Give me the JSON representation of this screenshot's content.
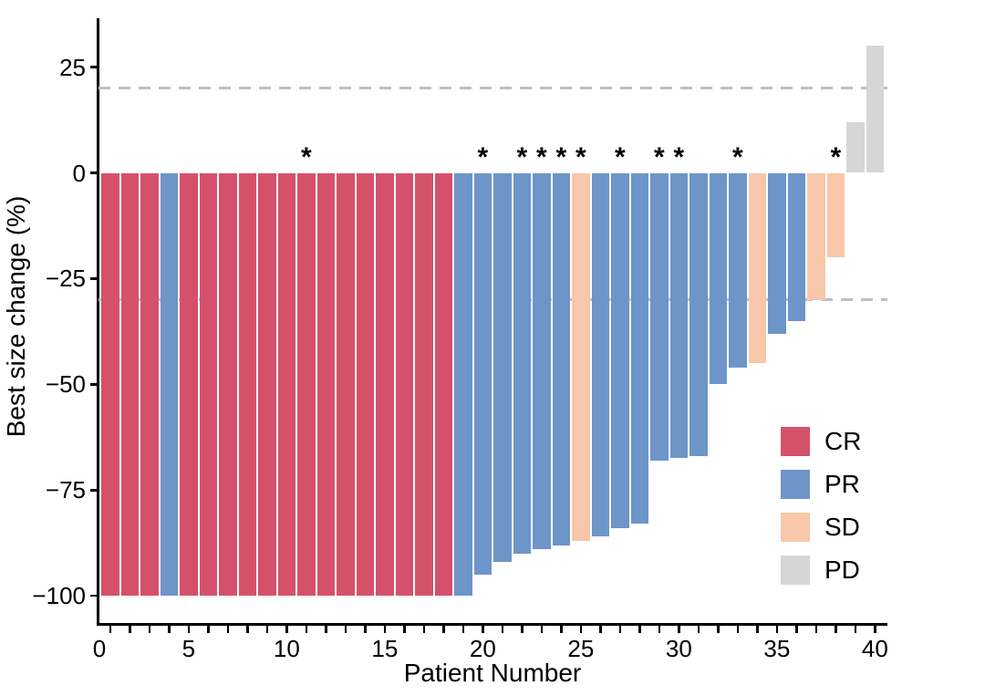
{
  "chart_data": {
    "type": "bar",
    "chart_kind": "waterfall",
    "title": "",
    "xlabel": "Patient Number",
    "ylabel": "Best size change (%)",
    "x_tick_values": [
      0,
      5,
      10,
      15,
      20,
      25,
      30,
      35,
      40
    ],
    "x_tick_labels": [
      "0",
      "5",
      "10",
      "15",
      "20",
      "25",
      "30",
      "35",
      "40"
    ],
    "x_minor_ticks": "every integer 1 to 40",
    "y_tick_values": [
      25,
      0,
      -25,
      -50,
      -75,
      -100
    ],
    "y_tick_labels": [
      "25",
      "0",
      "−25",
      "−50",
      "−75",
      "−100"
    ],
    "xlim": [
      0.4,
      40.65
    ],
    "ylim": [
      -106.5,
      36.5
    ],
    "grid": false,
    "reference_lines_y": [
      20,
      -30
    ],
    "reference_line_color": "#bfbfbf",
    "annotation_symbol": "*",
    "legend_position": "inside-right",
    "legend": [
      {
        "label": "CR",
        "color": "#d5516a"
      },
      {
        "label": "PR",
        "color": "#6d95c8"
      },
      {
        "label": "SD",
        "color": "#f8c7a9"
      },
      {
        "label": "PD",
        "color": "#d6d6d6"
      }
    ],
    "colors": {
      "CR": "#d5516a",
      "PR": "#6d95c8",
      "SD": "#f8c7a9",
      "PD": "#d6d6d6"
    },
    "patients": [
      {
        "patient": 1,
        "value": -100,
        "response": "CR",
        "star": false
      },
      {
        "patient": 2,
        "value": -100,
        "response": "CR",
        "star": false
      },
      {
        "patient": 3,
        "value": -100,
        "response": "CR",
        "star": false
      },
      {
        "patient": 4,
        "value": -100,
        "response": "PR",
        "star": false
      },
      {
        "patient": 5,
        "value": -100,
        "response": "CR",
        "star": false
      },
      {
        "patient": 6,
        "value": -100,
        "response": "CR",
        "star": false
      },
      {
        "patient": 7,
        "value": -100,
        "response": "CR",
        "star": false
      },
      {
        "patient": 8,
        "value": -100,
        "response": "CR",
        "star": false
      },
      {
        "patient": 9,
        "value": -100,
        "response": "CR",
        "star": false
      },
      {
        "patient": 10,
        "value": -100,
        "response": "CR",
        "star": false
      },
      {
        "patient": 11,
        "value": -100,
        "response": "CR",
        "star": true
      },
      {
        "patient": 12,
        "value": -100,
        "response": "CR",
        "star": false
      },
      {
        "patient": 13,
        "value": -100,
        "response": "CR",
        "star": false
      },
      {
        "patient": 14,
        "value": -100,
        "response": "CR",
        "star": false
      },
      {
        "patient": 15,
        "value": -100,
        "response": "CR",
        "star": false
      },
      {
        "patient": 16,
        "value": -100,
        "response": "CR",
        "star": false
      },
      {
        "patient": 17,
        "value": -100,
        "response": "CR",
        "star": false
      },
      {
        "patient": 18,
        "value": -100,
        "response": "CR",
        "star": false
      },
      {
        "patient": 19,
        "value": -100,
        "response": "PR",
        "star": false
      },
      {
        "patient": 20,
        "value": -95,
        "response": "PR",
        "star": true
      },
      {
        "patient": 21,
        "value": -92,
        "response": "PR",
        "star": false
      },
      {
        "patient": 22,
        "value": -90,
        "response": "PR",
        "star": true
      },
      {
        "patient": 23,
        "value": -89,
        "response": "PR",
        "star": true
      },
      {
        "patient": 24,
        "value": -88,
        "response": "PR",
        "star": true
      },
      {
        "patient": 25,
        "value": -87,
        "response": "SD",
        "star": true
      },
      {
        "patient": 26,
        "value": -86,
        "response": "PR",
        "star": false
      },
      {
        "patient": 27,
        "value": -84,
        "response": "PR",
        "star": true
      },
      {
        "patient": 28,
        "value": -83,
        "response": "PR",
        "star": false
      },
      {
        "patient": 29,
        "value": -68,
        "response": "PR",
        "star": true
      },
      {
        "patient": 30,
        "value": -67.5,
        "response": "PR",
        "star": true
      },
      {
        "patient": 31,
        "value": -67,
        "response": "PR",
        "star": false
      },
      {
        "patient": 32,
        "value": -50,
        "response": "PR",
        "star": false
      },
      {
        "patient": 33,
        "value": -46,
        "response": "PR",
        "star": true
      },
      {
        "patient": 34,
        "value": -45,
        "response": "SD",
        "star": false
      },
      {
        "patient": 35,
        "value": -38,
        "response": "PR",
        "star": false
      },
      {
        "patient": 36,
        "value": -35,
        "response": "PR",
        "star": false
      },
      {
        "patient": 37,
        "value": -30,
        "response": "SD",
        "star": false
      },
      {
        "patient": 38,
        "value": -20,
        "response": "SD",
        "star": true
      },
      {
        "patient": 39,
        "value": 12,
        "response": "PD",
        "star": false
      },
      {
        "patient": 40,
        "value": 30,
        "response": "PD",
        "star": false
      }
    ]
  }
}
